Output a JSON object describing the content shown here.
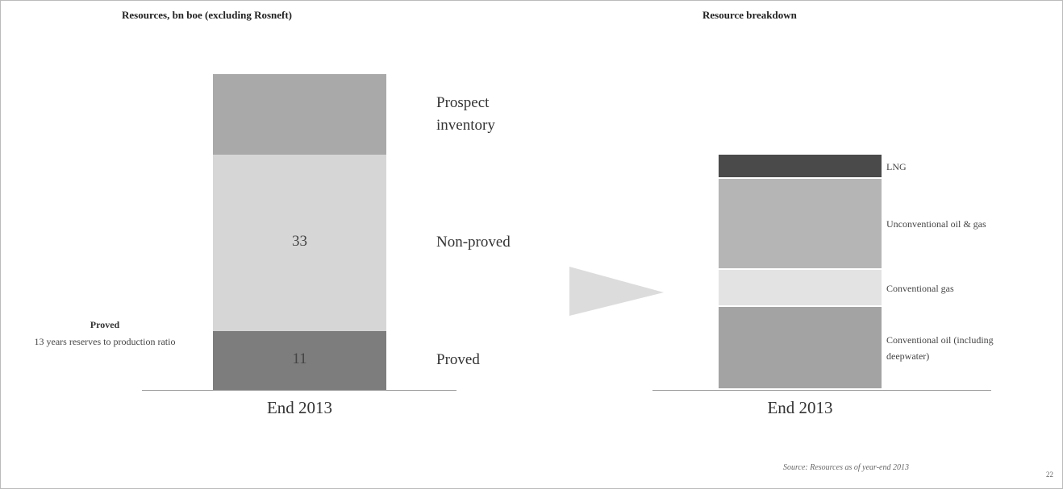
{
  "chart_data": [
    {
      "type": "stacked_bar",
      "title": "Resources, bn boe (excluding Rosneft)",
      "categories": [
        "End 2013"
      ],
      "series": [
        {
          "name": "Proved",
          "color": "#7d7d7d",
          "values": [
            11
          ],
          "data_label": true
        },
        {
          "name": "Non-proved",
          "color": "#d6d6d6",
          "values": [
            33
          ],
          "data_label": true
        },
        {
          "name": "Prospect inventory",
          "color": "#a9a9a9",
          "values": [
            15
          ]
        }
      ],
      "annotation": {
        "title": "Proved",
        "text": "13 years reserves to production ratio"
      }
    },
    {
      "type": "stacked_bar",
      "title": "Resource breakdown",
      "categories": [
        "End 2013"
      ],
      "series": [
        {
          "name": "Conventional oil (including deepwater)",
          "color": "#a3a3a3",
          "values": [
            15.5
          ]
        },
        {
          "name": "Conventional gas",
          "color": "#e3e3e3",
          "values": [
            7
          ]
        },
        {
          "name": "Unconventional oil & gas",
          "color": "#b5b5b5",
          "values": [
            17
          ]
        },
        {
          "name": "LNG",
          "color": "#4a4a4a",
          "values": [
            4.5
          ]
        }
      ]
    }
  ],
  "source": "Source: Resources as of year-end 2013",
  "page_number": "22"
}
